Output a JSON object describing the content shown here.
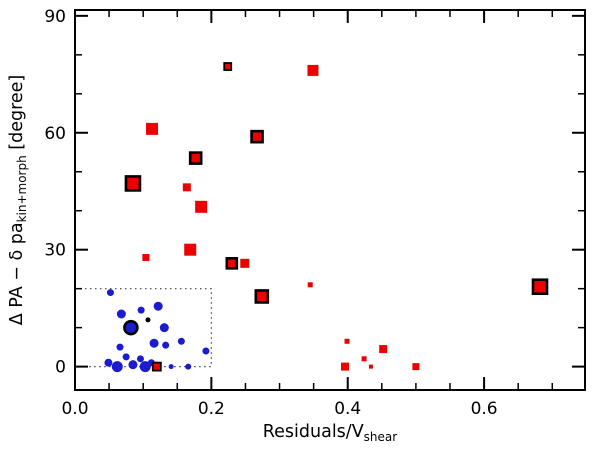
{
  "figure": {
    "background": "#ffffff"
  },
  "chart_data": {
    "type": "scatter",
    "title": "",
    "xlabel_main": "Residuals/V",
    "xlabel_sub": "shear",
    "ylabel_main": "Δ PA − δ pa",
    "ylabel_sub": "kin+morph",
    "ylabel_suffix": " [degree]",
    "xlim": [
      0,
      0.748
    ],
    "ylim": [
      -6,
      91.5
    ],
    "x_major_ticks": [
      0,
      0.2,
      0.4,
      0.6
    ],
    "x_tick_labels": [
      "0.0",
      "0.2",
      "0.4",
      "0.6"
    ],
    "x_minor_step": 0.05,
    "y_major_ticks": [
      0,
      30,
      60,
      90
    ],
    "y_tick_labels": [
      "0",
      "30",
      "60",
      "90"
    ],
    "y_minor_step": 10,
    "grid": false,
    "legend": "none",
    "dotted_box": {
      "x0": 0,
      "y0": 0,
      "x1": 0.2,
      "y1": 20
    },
    "colors": {
      "red": "#ee0000",
      "blue": "#1b1bd1",
      "black": "#000000",
      "outline": "#000000",
      "box_dots": "#444444"
    },
    "series": [
      {
        "name": "blue-circles",
        "marker": "circle",
        "color": "blue",
        "points": [
          {
            "x": 0.052,
            "y": 19,
            "s": 7
          },
          {
            "x": 0.068,
            "y": 13.5,
            "s": 9
          },
          {
            "x": 0.082,
            "y": 10,
            "s": 13,
            "o": true
          },
          {
            "x": 0.097,
            "y": 14.5,
            "s": 7
          },
          {
            "x": 0.122,
            "y": 15.5,
            "s": 9
          },
          {
            "x": 0.131,
            "y": 10,
            "s": 9
          },
          {
            "x": 0.066,
            "y": 5,
            "s": 7
          },
          {
            "x": 0.049,
            "y": 1,
            "s": 8
          },
          {
            "x": 0.062,
            "y": 0,
            "s": 11
          },
          {
            "x": 0.075,
            "y": 2.5,
            "s": 7
          },
          {
            "x": 0.085,
            "y": 0.5,
            "s": 9
          },
          {
            "x": 0.096,
            "y": 2,
            "s": 7
          },
          {
            "x": 0.103,
            "y": 0,
            "s": 11
          },
          {
            "x": 0.112,
            "y": 1,
            "s": 7
          },
          {
            "x": 0.116,
            "y": 6,
            "s": 9
          },
          {
            "x": 0.133,
            "y": 5.5,
            "s": 7
          },
          {
            "x": 0.141,
            "y": 0,
            "s": 5
          },
          {
            "x": 0.156,
            "y": 6.5,
            "s": 7
          },
          {
            "x": 0.166,
            "y": 0,
            "s": 6
          },
          {
            "x": 0.192,
            "y": 4,
            "s": 7
          }
        ]
      },
      {
        "name": "red-squares",
        "marker": "square",
        "color": "red",
        "points": [
          {
            "x": 0.085,
            "y": 47,
            "s": 14,
            "o": true
          },
          {
            "x": 0.113,
            "y": 61,
            "s": 12
          },
          {
            "x": 0.104,
            "y": 28,
            "s": 7
          },
          {
            "x": 0.169,
            "y": 30,
            "s": 12
          },
          {
            "x": 0.177,
            "y": 53.5,
            "s": 11,
            "o": true
          },
          {
            "x": 0.164,
            "y": 46,
            "s": 8
          },
          {
            "x": 0.185,
            "y": 41,
            "s": 12
          },
          {
            "x": 0.224,
            "y": 77,
            "s": 7,
            "o": true
          },
          {
            "x": 0.23,
            "y": 26.5,
            "s": 10,
            "o": true
          },
          {
            "x": 0.249,
            "y": 26.5,
            "s": 9
          },
          {
            "x": 0.267,
            "y": 59,
            "s": 11,
            "o": true
          },
          {
            "x": 0.274,
            "y": 18,
            "s": 12,
            "o": true
          },
          {
            "x": 0.349,
            "y": 76,
            "s": 11
          },
          {
            "x": 0.345,
            "y": 21,
            "s": 5
          },
          {
            "x": 0.399,
            "y": 6.5,
            "s": 5
          },
          {
            "x": 0.396,
            "y": 0,
            "s": 8
          },
          {
            "x": 0.424,
            "y": 2,
            "s": 5
          },
          {
            "x": 0.434,
            "y": 0,
            "s": 4
          },
          {
            "x": 0.452,
            "y": 4.5,
            "s": 8
          },
          {
            "x": 0.5,
            "y": 0,
            "s": 7
          },
          {
            "x": 0.682,
            "y": 20.5,
            "s": 14,
            "o": true
          },
          {
            "x": 0.12,
            "y": 0,
            "s": 8,
            "o": true
          }
        ]
      },
      {
        "name": "black-dots",
        "marker": "circle",
        "color": "black",
        "points": [
          {
            "x": 0.107,
            "y": 12,
            "s": 5
          }
        ]
      }
    ]
  }
}
